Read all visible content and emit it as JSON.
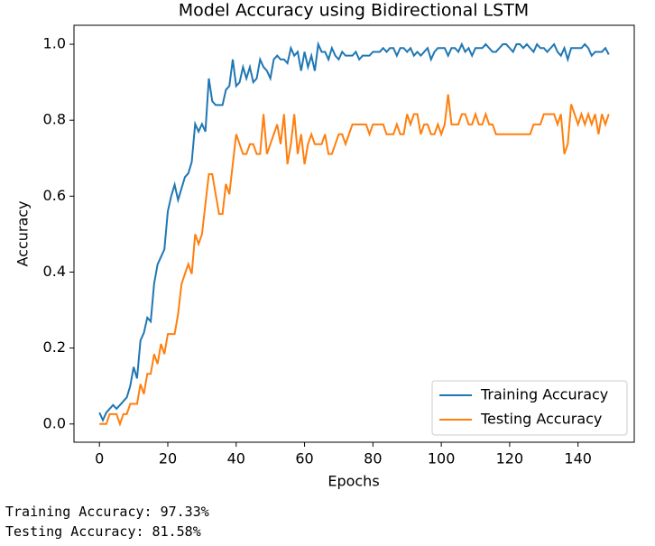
{
  "chart_data": {
    "type": "line",
    "title": "Model Accuracy using Bidirectional LSTM",
    "xlabel": "Epochs",
    "ylabel": "Accuracy",
    "x": [
      0,
      1,
      2,
      3,
      4,
      5,
      6,
      7,
      8,
      9,
      10,
      11,
      12,
      13,
      14,
      15,
      16,
      17,
      18,
      19,
      20,
      21,
      22,
      23,
      24,
      25,
      26,
      27,
      28,
      29,
      30,
      31,
      32,
      33,
      34,
      35,
      36,
      37,
      38,
      39,
      40,
      41,
      42,
      43,
      44,
      45,
      46,
      47,
      48,
      49,
      50,
      51,
      52,
      53,
      54,
      55,
      56,
      57,
      58,
      59,
      60,
      61,
      62,
      63,
      64,
      65,
      66,
      67,
      68,
      69,
      70,
      71,
      72,
      73,
      74,
      75,
      76,
      77,
      78,
      79,
      80,
      81,
      82,
      83,
      84,
      85,
      86,
      87,
      88,
      89,
      90,
      91,
      92,
      93,
      94,
      95,
      96,
      97,
      98,
      99,
      100,
      101,
      102,
      103,
      104,
      105,
      106,
      107,
      108,
      109,
      110,
      111,
      112,
      113,
      114,
      115,
      116,
      117,
      118,
      119,
      120,
      121,
      122,
      123,
      124,
      125,
      126,
      127,
      128,
      129,
      130,
      131,
      132,
      133,
      134,
      135,
      136,
      137,
      138,
      139,
      140,
      141,
      142,
      143,
      144,
      145,
      146,
      147,
      148,
      149
    ],
    "series": [
      {
        "name": "Training Accuracy",
        "color": "#1f77b4",
        "values": [
          0.03,
          0.01,
          0.03,
          0.04,
          0.05,
          0.04,
          0.05,
          0.06,
          0.07,
          0.1,
          0.15,
          0.12,
          0.22,
          0.24,
          0.28,
          0.27,
          0.37,
          0.42,
          0.44,
          0.46,
          0.56,
          0.6,
          0.63,
          0.59,
          0.62,
          0.65,
          0.66,
          0.69,
          0.79,
          0.77,
          0.79,
          0.77,
          0.91,
          0.85,
          0.84,
          0.84,
          0.84,
          0.88,
          0.89,
          0.96,
          0.89,
          0.9,
          0.94,
          0.91,
          0.94,
          0.9,
          0.91,
          0.96,
          0.94,
          0.93,
          0.91,
          0.96,
          0.97,
          0.96,
          0.96,
          0.95,
          0.99,
          0.97,
          0.98,
          0.93,
          0.98,
          0.94,
          0.97,
          0.93,
          1.0,
          0.98,
          0.98,
          0.96,
          0.99,
          0.97,
          0.96,
          0.98,
          0.97,
          0.97,
          0.97,
          0.98,
          0.96,
          0.97,
          0.97,
          0.97,
          0.98,
          0.98,
          0.98,
          0.99,
          0.98,
          0.99,
          0.99,
          0.97,
          0.99,
          0.99,
          0.98,
          0.99,
          0.97,
          0.98,
          0.97,
          0.98,
          0.99,
          0.96,
          0.98,
          0.99,
          0.99,
          0.99,
          0.97,
          0.99,
          0.99,
          0.98,
          1.0,
          0.98,
          0.99,
          0.97,
          0.99,
          0.99,
          0.99,
          1.0,
          0.99,
          0.98,
          0.98,
          0.99,
          1.0,
          1.0,
          0.99,
          0.98,
          1.0,
          1.0,
          0.99,
          1.0,
          0.99,
          0.98,
          1.0,
          0.99,
          0.99,
          0.98,
          0.99,
          1.0,
          0.98,
          0.97,
          0.99,
          0.96,
          0.99,
          0.99,
          0.99,
          0.99,
          1.0,
          0.99,
          0.97,
          0.98,
          0.98,
          0.98,
          0.99,
          0.973
        ]
      },
      {
        "name": "Testing Accuracy",
        "color": "#ff7f0e",
        "values": [
          0,
          0,
          0,
          0.026,
          0.026,
          0.026,
          0,
          0.026,
          0.026,
          0.053,
          0.053,
          0.053,
          0.105,
          0.079,
          0.132,
          0.132,
          0.184,
          0.158,
          0.211,
          0.184,
          0.237,
          0.237,
          0.237,
          0.289,
          0.368,
          0.395,
          0.421,
          0.395,
          0.5,
          0.474,
          0.5,
          0.579,
          0.658,
          0.658,
          0.605,
          0.553,
          0.553,
          0.632,
          0.605,
          0.684,
          0.763,
          0.737,
          0.711,
          0.711,
          0.737,
          0.737,
          0.711,
          0.711,
          0.816,
          0.711,
          0.737,
          0.763,
          0.789,
          0.737,
          0.816,
          0.684,
          0.737,
          0.816,
          0.711,
          0.763,
          0.684,
          0.737,
          0.763,
          0.737,
          0.737,
          0.737,
          0.763,
          0.711,
          0.711,
          0.737,
          0.763,
          0.763,
          0.737,
          0.763,
          0.789,
          0.789,
          0.789,
          0.789,
          0.789,
          0.763,
          0.789,
          0.789,
          0.789,
          0.789,
          0.763,
          0.763,
          0.763,
          0.789,
          0.763,
          0.763,
          0.816,
          0.789,
          0.816,
          0.816,
          0.763,
          0.789,
          0.789,
          0.763,
          0.763,
          0.789,
          0.763,
          0.789,
          0.868,
          0.789,
          0.789,
          0.789,
          0.816,
          0.816,
          0.789,
          0.789,
          0.816,
          0.789,
          0.789,
          0.816,
          0.789,
          0.789,
          0.763,
          0.763,
          0.763,
          0.763,
          0.763,
          0.763,
          0.763,
          0.763,
          0.763,
          0.763,
          0.763,
          0.789,
          0.789,
          0.789,
          0.816,
          0.816,
          0.816,
          0.816,
          0.789,
          0.816,
          0.711,
          0.737,
          0.842,
          0.816,
          0.789,
          0.816,
          0.789,
          0.816,
          0.789,
          0.816,
          0.763,
          0.816,
          0.789,
          0.816
        ]
      }
    ],
    "xlim": [
      -7.45,
      156.45
    ],
    "ylim": [
      -0.048,
      1.05
    ],
    "xticks": [
      0,
      20,
      40,
      60,
      80,
      100,
      120,
      140
    ],
    "yticks": [
      {
        "value": 0,
        "label": "0.0"
      },
      {
        "value": 0.2,
        "label": "0.2"
      },
      {
        "value": 0.4,
        "label": "0.4"
      },
      {
        "value": 0.6,
        "label": "0.6"
      },
      {
        "value": 0.8,
        "label": "0.8"
      },
      {
        "value": 1,
        "label": "1.0"
      }
    ],
    "legend": "lower right"
  },
  "output": [
    "Training Accuracy: 97.33%",
    "Testing Accuracy: 81.58%"
  ]
}
